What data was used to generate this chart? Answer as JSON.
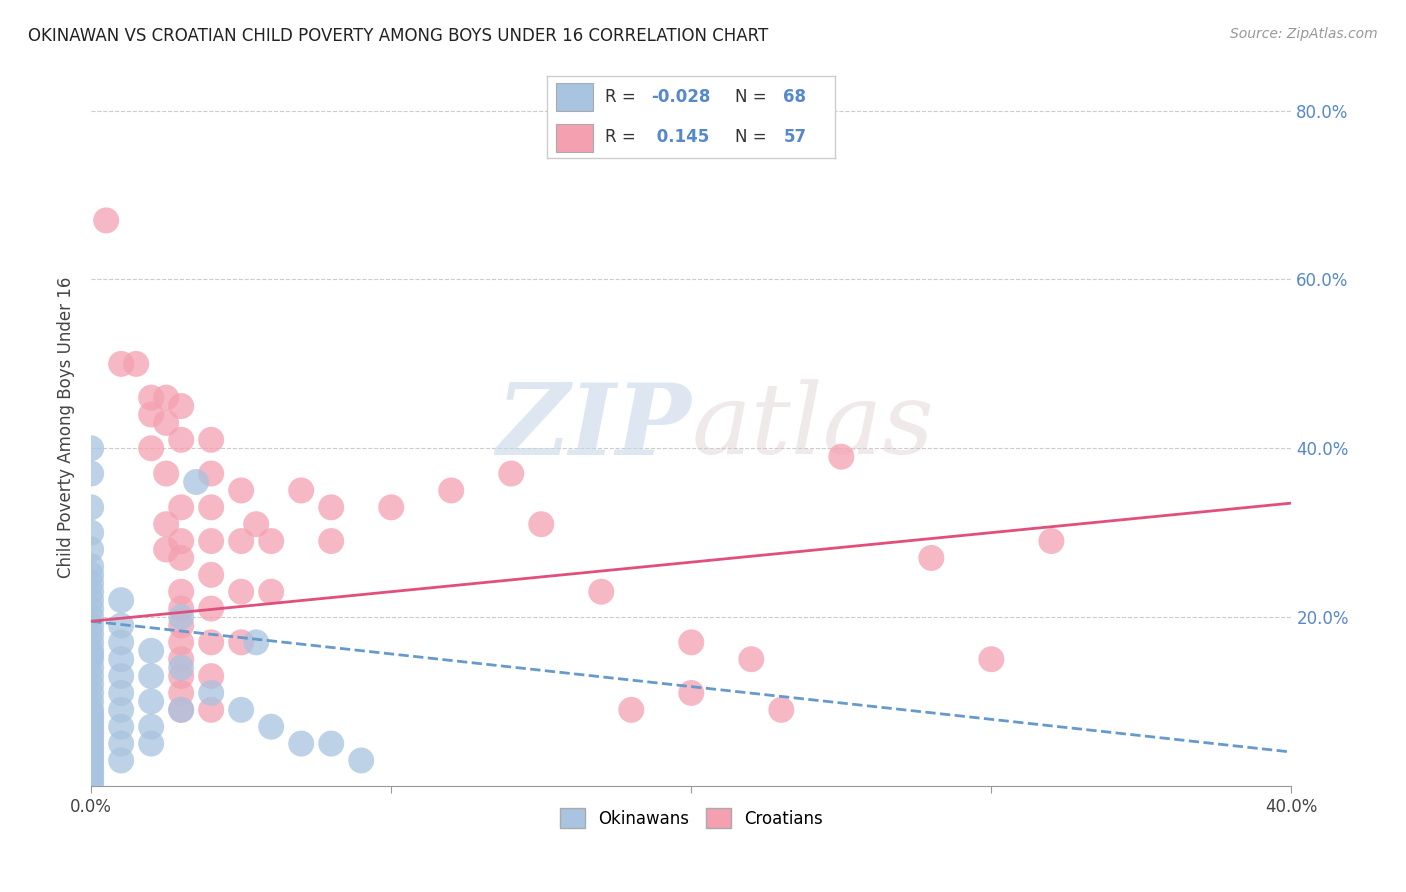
{
  "title": "OKINAWAN VS CROATIAN CHILD POVERTY AMONG BOYS UNDER 16 CORRELATION CHART",
  "source": "Source: ZipAtlas.com",
  "ylabel": "Child Poverty Among Boys Under 16",
  "xlim": [
    0.0,
    0.4
  ],
  "ylim": [
    0.0,
    0.85
  ],
  "xticks": [
    0.0,
    0.1,
    0.2,
    0.3,
    0.4
  ],
  "xticklabels": [
    "0.0%",
    "",
    "",
    "",
    "40.0%"
  ],
  "yticks": [
    0.0,
    0.2,
    0.4,
    0.6,
    0.8
  ],
  "yticklabels_right": [
    "",
    "20.0%",
    "40.0%",
    "60.0%",
    "80.0%"
  ],
  "grid_color": "#cccccc",
  "background_color": "#ffffff",
  "legend_labels": [
    "Okinawans",
    "Croatians"
  ],
  "okinawan_R": -0.028,
  "okinawan_N": 68,
  "croatian_R": 0.145,
  "croatian_N": 57,
  "okinawan_color": "#a8c4e0",
  "croatian_color": "#f4a0b0",
  "okinawan_line_color": "#6699cc",
  "croatian_line_color": "#e0507a",
  "okinawan_scatter": [
    [
      0.0,
      0.4
    ],
    [
      0.0,
      0.37
    ],
    [
      0.0,
      0.33
    ],
    [
      0.0,
      0.3
    ],
    [
      0.0,
      0.28
    ],
    [
      0.0,
      0.26
    ],
    [
      0.0,
      0.25
    ],
    [
      0.0,
      0.24
    ],
    [
      0.0,
      0.23
    ],
    [
      0.0,
      0.22
    ],
    [
      0.0,
      0.21
    ],
    [
      0.0,
      0.2
    ],
    [
      0.0,
      0.19
    ],
    [
      0.0,
      0.18
    ],
    [
      0.0,
      0.17
    ],
    [
      0.0,
      0.16
    ],
    [
      0.0,
      0.155
    ],
    [
      0.0,
      0.15
    ],
    [
      0.0,
      0.14
    ],
    [
      0.0,
      0.13
    ],
    [
      0.0,
      0.12
    ],
    [
      0.0,
      0.11
    ],
    [
      0.0,
      0.1
    ],
    [
      0.0,
      0.09
    ],
    [
      0.0,
      0.085
    ],
    [
      0.0,
      0.08
    ],
    [
      0.0,
      0.075
    ],
    [
      0.0,
      0.07
    ],
    [
      0.0,
      0.065
    ],
    [
      0.0,
      0.06
    ],
    [
      0.0,
      0.055
    ],
    [
      0.0,
      0.05
    ],
    [
      0.0,
      0.045
    ],
    [
      0.0,
      0.04
    ],
    [
      0.0,
      0.035
    ],
    [
      0.0,
      0.03
    ],
    [
      0.0,
      0.025
    ],
    [
      0.0,
      0.02
    ],
    [
      0.0,
      0.015
    ],
    [
      0.0,
      0.01
    ],
    [
      0.0,
      0.005
    ],
    [
      0.0,
      0.0
    ],
    [
      0.01,
      0.22
    ],
    [
      0.01,
      0.19
    ],
    [
      0.01,
      0.17
    ],
    [
      0.01,
      0.15
    ],
    [
      0.01,
      0.13
    ],
    [
      0.01,
      0.11
    ],
    [
      0.01,
      0.09
    ],
    [
      0.01,
      0.07
    ],
    [
      0.01,
      0.05
    ],
    [
      0.01,
      0.03
    ],
    [
      0.02,
      0.16
    ],
    [
      0.02,
      0.13
    ],
    [
      0.02,
      0.1
    ],
    [
      0.02,
      0.07
    ],
    [
      0.02,
      0.05
    ],
    [
      0.03,
      0.2
    ],
    [
      0.03,
      0.14
    ],
    [
      0.03,
      0.09
    ],
    [
      0.035,
      0.36
    ],
    [
      0.04,
      0.11
    ],
    [
      0.05,
      0.09
    ],
    [
      0.055,
      0.17
    ],
    [
      0.06,
      0.07
    ],
    [
      0.07,
      0.05
    ],
    [
      0.08,
      0.05
    ],
    [
      0.09,
      0.03
    ]
  ],
  "croatian_scatter": [
    [
      0.005,
      0.67
    ],
    [
      0.01,
      0.5
    ],
    [
      0.015,
      0.5
    ],
    [
      0.02,
      0.46
    ],
    [
      0.02,
      0.44
    ],
    [
      0.02,
      0.4
    ],
    [
      0.025,
      0.46
    ],
    [
      0.025,
      0.43
    ],
    [
      0.025,
      0.37
    ],
    [
      0.025,
      0.31
    ],
    [
      0.025,
      0.28
    ],
    [
      0.03,
      0.45
    ],
    [
      0.03,
      0.41
    ],
    [
      0.03,
      0.33
    ],
    [
      0.03,
      0.29
    ],
    [
      0.03,
      0.27
    ],
    [
      0.03,
      0.23
    ],
    [
      0.03,
      0.21
    ],
    [
      0.03,
      0.19
    ],
    [
      0.03,
      0.17
    ],
    [
      0.03,
      0.15
    ],
    [
      0.03,
      0.13
    ],
    [
      0.03,
      0.11
    ],
    [
      0.03,
      0.09
    ],
    [
      0.04,
      0.41
    ],
    [
      0.04,
      0.37
    ],
    [
      0.04,
      0.33
    ],
    [
      0.04,
      0.29
    ],
    [
      0.04,
      0.25
    ],
    [
      0.04,
      0.21
    ],
    [
      0.04,
      0.17
    ],
    [
      0.04,
      0.13
    ],
    [
      0.04,
      0.09
    ],
    [
      0.05,
      0.35
    ],
    [
      0.05,
      0.29
    ],
    [
      0.05,
      0.23
    ],
    [
      0.05,
      0.17
    ],
    [
      0.055,
      0.31
    ],
    [
      0.06,
      0.29
    ],
    [
      0.06,
      0.23
    ],
    [
      0.07,
      0.35
    ],
    [
      0.08,
      0.33
    ],
    [
      0.08,
      0.29
    ],
    [
      0.1,
      0.33
    ],
    [
      0.12,
      0.35
    ],
    [
      0.14,
      0.37
    ],
    [
      0.15,
      0.31
    ],
    [
      0.17,
      0.23
    ],
    [
      0.18,
      0.09
    ],
    [
      0.2,
      0.11
    ],
    [
      0.2,
      0.17
    ],
    [
      0.22,
      0.15
    ],
    [
      0.23,
      0.09
    ],
    [
      0.25,
      0.39
    ],
    [
      0.28,
      0.27
    ],
    [
      0.3,
      0.15
    ],
    [
      0.32,
      0.29
    ]
  ],
  "ok_line_x0": 0.0,
  "ok_line_y0": 0.195,
  "ok_line_x1": 0.4,
  "ok_line_y1": 0.04,
  "cr_line_x0": 0.0,
  "cr_line_y0": 0.195,
  "cr_line_x1": 0.4,
  "cr_line_y1": 0.335
}
